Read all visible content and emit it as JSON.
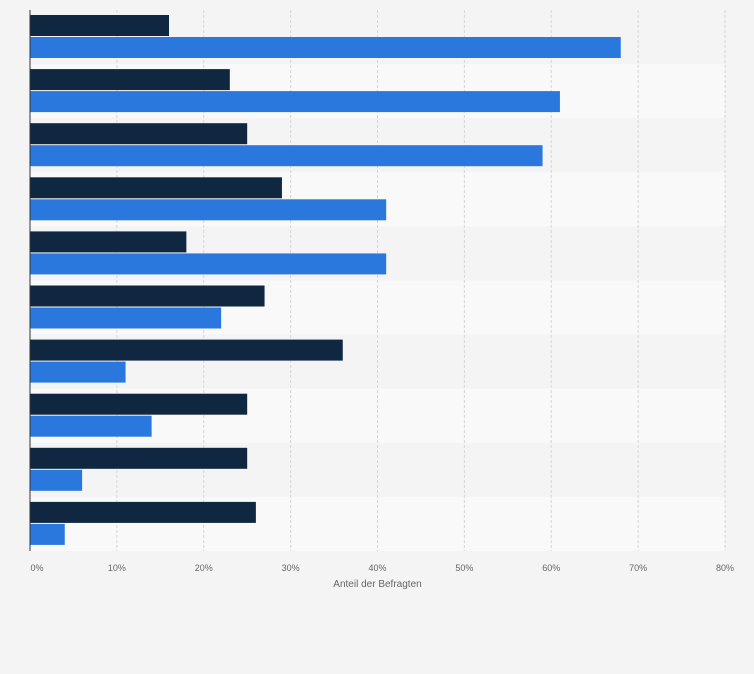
{
  "chart_data": {
    "type": "bar",
    "orientation": "horizontal",
    "categories": [
      "",
      "",
      "",
      "",
      "",
      "",
      "",
      "",
      "",
      ""
    ],
    "series": [
      {
        "color": "#0f2741",
        "values": [
          16,
          23,
          25,
          29,
          18,
          27,
          36,
          25,
          25,
          26
        ]
      },
      {
        "color": "#2a78de",
        "values": [
          68,
          61,
          59,
          41,
          41,
          22,
          11,
          14,
          6,
          4
        ]
      }
    ],
    "xlim": [
      0,
      80
    ],
    "x_ticks": [
      {
        "value": 0,
        "label": "0%"
      },
      {
        "value": 10,
        "label": "10%"
      },
      {
        "value": 20,
        "label": "20%"
      },
      {
        "value": 30,
        "label": "30%"
      },
      {
        "value": 40,
        "label": "40%"
      },
      {
        "value": 50,
        "label": "50%"
      },
      {
        "value": 60,
        "label": "60%"
      },
      {
        "value": 70,
        "label": "70%"
      },
      {
        "value": 80,
        "label": "80%"
      }
    ],
    "xlabel": "Anteil der Befragten",
    "grid": true,
    "legend": "none"
  }
}
